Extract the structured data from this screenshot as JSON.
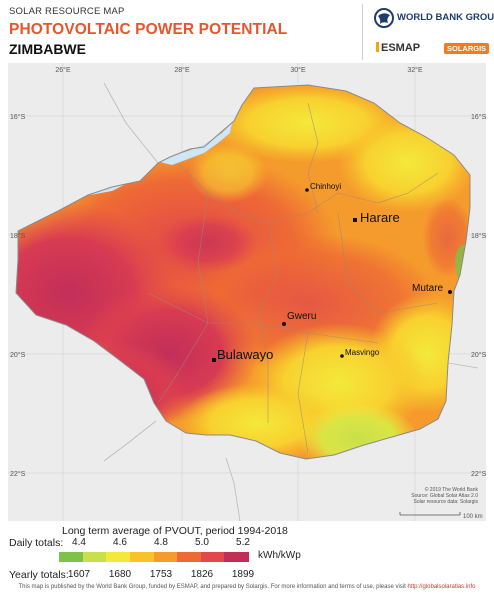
{
  "header": {
    "small_title": "SOLAR RESOURCE MAP",
    "title": "PHOTOVOLTAIC POWER POTENTIAL",
    "country": "ZIMBABWE"
  },
  "logos": {
    "world_bank": "WORLD BANK GROUP",
    "esmap": "ESMAP",
    "solargis": "SOLARGIS"
  },
  "map": {
    "graticule_lon_labels": [
      "26°E",
      "28°E",
      "30°E",
      "32°E"
    ],
    "graticule_lat_labels": [
      "16°S",
      "18°S",
      "20°S",
      "22°S"
    ],
    "cities": [
      {
        "name": "Chinhoyi",
        "size": "small"
      },
      {
        "name": "Harare",
        "size": "large"
      },
      {
        "name": "Mutare",
        "size": "medium"
      },
      {
        "name": "Gweru",
        "size": "medium"
      },
      {
        "name": "Masvingo",
        "size": "small"
      },
      {
        "name": "Bulawayo",
        "size": "large"
      }
    ],
    "credit_lines": [
      "© 2019 The World Bank",
      "Source: Global Solar Atlas 2.0",
      "Solar resource data: Solargis"
    ],
    "scale_label": "100 km"
  },
  "legend": {
    "title": "Long term average of PVOUT, period 1994-2018",
    "daily_label": "Daily totals:",
    "yearly_label": "Yearly totals:",
    "daily_ticks": [
      "4.4",
      "4.6",
      "4.8",
      "5.0",
      "5.2"
    ],
    "yearly_ticks": [
      "1607",
      "1680",
      "1753",
      "1826",
      "1899"
    ],
    "unit": "kWh/kWp",
    "colors": [
      "#7ec24a",
      "#c9e04a",
      "#f4e93a",
      "#f8c22a",
      "#f59a2c",
      "#ee6a35",
      "#e2474a",
      "#c12f59"
    ]
  },
  "footer": {
    "text": "This map is published by the World Bank Group, funded by ESMAP, and prepared by Solargis. For more information and terms of use, please visit",
    "link": "http://globalsolaratlas.info"
  }
}
